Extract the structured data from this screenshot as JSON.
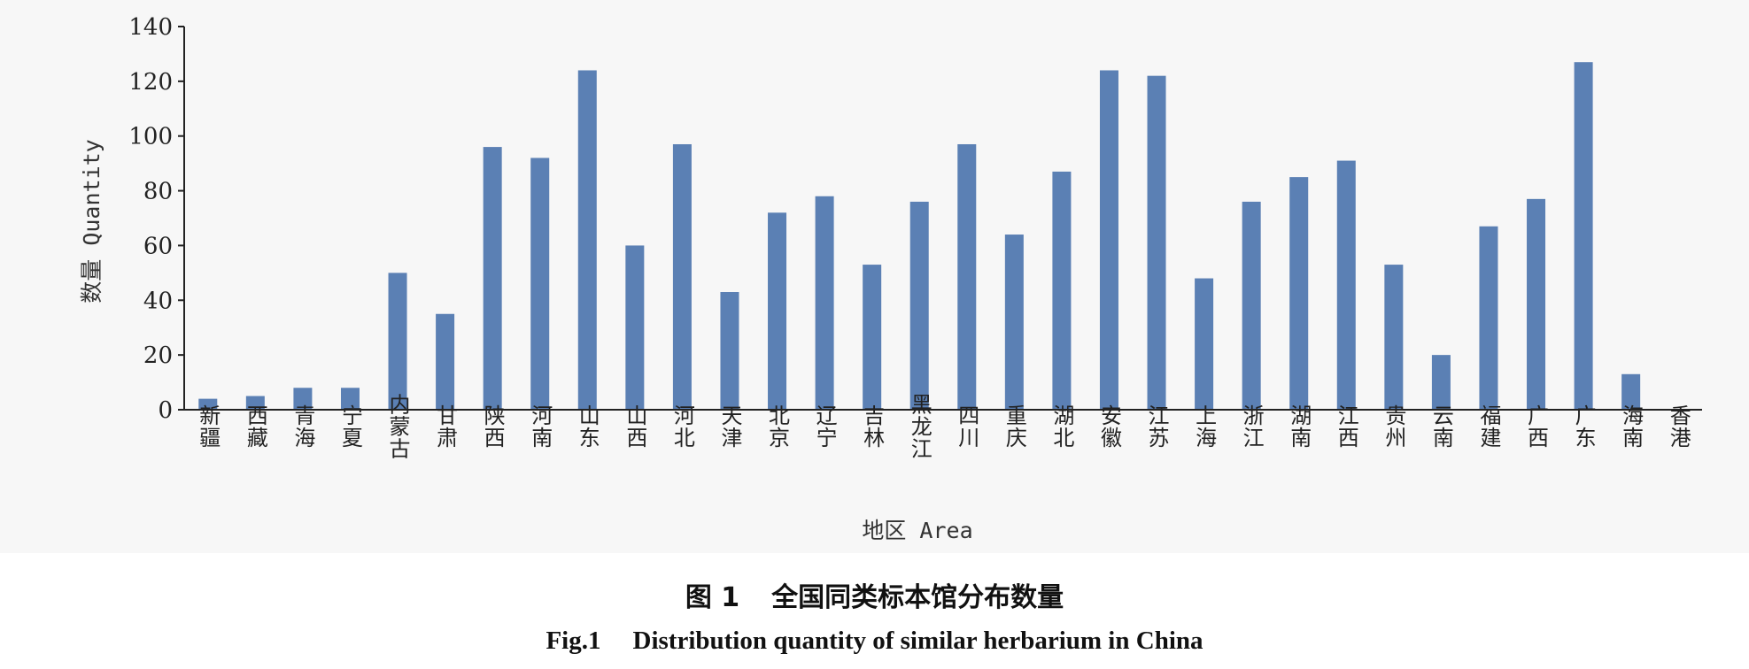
{
  "chart_data": {
    "type": "bar",
    "xlabel": "地区 Area",
    "ylabel": "数量 Quantity",
    "ylim": [
      0,
      140
    ],
    "yticks": [
      0,
      20,
      40,
      60,
      80,
      100,
      120,
      140
    ],
    "grid": false,
    "legend": "none",
    "bar_color": "#5b80b4",
    "categories": [
      "新疆",
      "西藏",
      "青海",
      "宁夏",
      "内蒙古",
      "甘肃",
      "陕西",
      "河南",
      "山东",
      "山西",
      "河北",
      "天津",
      "北京",
      "辽宁",
      "吉林",
      "黑龙江",
      "四川",
      "重庆",
      "湖北",
      "安徽",
      "江苏",
      "上海",
      "浙江",
      "湖南",
      "江西",
      "贵州",
      "云南",
      "福建",
      "广西",
      "广东",
      "海南",
      "香港"
    ],
    "values": [
      4,
      5,
      8,
      8,
      50,
      35,
      96,
      92,
      124,
      60,
      97,
      43,
      72,
      78,
      53,
      76,
      97,
      64,
      87,
      124,
      122,
      48,
      76,
      85,
      91,
      53,
      20,
      67,
      77,
      127,
      13,
      0
    ]
  },
  "caption": {
    "cn_number": "图 1",
    "cn_title": "全国同类标本馆分布数量",
    "en_number": "Fig.1",
    "en_title": "Distribution quantity of similar herbarium in China"
  }
}
